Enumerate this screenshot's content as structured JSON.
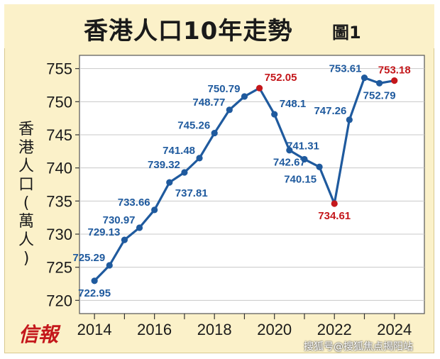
{
  "header": {
    "title": "香港人口10年走勢",
    "subtitle": "圖1"
  },
  "ylabel": [
    "香",
    "港",
    "人",
    "口",
    "(",
    "萬",
    "人",
    ")"
  ],
  "logo": "信報",
  "watermark": "搜狐号@搜狐焦点揭阳站",
  "colors": {
    "line": "#1f5a9e",
    "point": "#1f5a9e",
    "highlight": "#c4171b",
    "label": "#1f5a9e",
    "plot_bg": "#ffffff",
    "grid": "#c8c8c8"
  },
  "chart_data": {
    "type": "line",
    "xlabel": "",
    "ylabel": "香港人口(萬人)",
    "ylim": [
      720,
      755
    ],
    "yticks": [
      720,
      725,
      730,
      735,
      740,
      745,
      750,
      755
    ],
    "xticks": [
      "2014",
      "2016",
      "2018",
      "2020",
      "2022",
      "2024"
    ],
    "grid": "horizontal",
    "series": [
      {
        "points": [
          {
            "x": 2013.5,
            "y": 722.95,
            "label": "722.95",
            "pos": "below"
          },
          {
            "x": 2014.0,
            "y": 725.29,
            "label": "725.29",
            "pos": "left"
          },
          {
            "x": 2014.5,
            "y": 729.13,
            "label": "729.13",
            "pos": "left"
          },
          {
            "x": 2015.0,
            "y": 730.97,
            "label": "730.97",
            "pos": "left"
          },
          {
            "x": 2015.5,
            "y": 733.66,
            "label": "733.66",
            "pos": "left"
          },
          {
            "x": 2016.0,
            "y": 737.81,
            "label": "737.81",
            "pos": "belowright"
          },
          {
            "x": 2016.5,
            "y": 739.32,
            "label": "739.32",
            "pos": "left"
          },
          {
            "x": 2017.0,
            "y": 741.48,
            "label": "741.48",
            "pos": "left"
          },
          {
            "x": 2017.5,
            "y": 745.26,
            "label": "745.26",
            "pos": "left"
          },
          {
            "x": 2018.0,
            "y": 748.77,
            "label": "748.77",
            "pos": "left"
          },
          {
            "x": 2018.5,
            "y": 750.79,
            "label": "750.79",
            "pos": "left"
          },
          {
            "x": 2019.0,
            "y": 752.05,
            "label": "752.05",
            "pos": "right",
            "highlight": true
          },
          {
            "x": 2019.5,
            "y": 748.1,
            "label": "748.1",
            "pos": "right"
          },
          {
            "x": 2020.0,
            "y": 742.67,
            "label": "742.67",
            "pos": "below"
          },
          {
            "x": 2020.5,
            "y": 741.31,
            "label": "741.31",
            "pos": "aboveright"
          },
          {
            "x": 2021.0,
            "y": 740.15,
            "label": "740.15",
            "pos": "belowleft"
          },
          {
            "x": 2021.5,
            "y": 734.61,
            "label": "734.61",
            "pos": "below",
            "highlight": true
          },
          {
            "x": 2022.0,
            "y": 747.26,
            "label": "747.26",
            "pos": "aboveleft"
          },
          {
            "x": 2022.5,
            "y": 753.61,
            "label": "753.61",
            "pos": "aboveleft"
          },
          {
            "x": 2023.0,
            "y": 752.79,
            "label": "752.79",
            "pos": "below"
          },
          {
            "x": 2023.5,
            "y": 753.18,
            "label": "753.18",
            "pos": "above",
            "highlight": true
          }
        ]
      }
    ]
  }
}
